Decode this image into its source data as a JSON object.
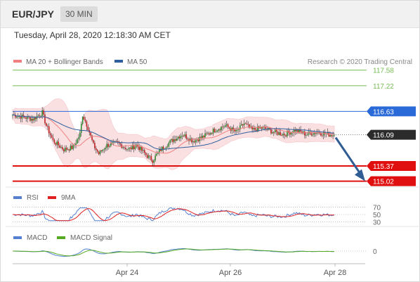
{
  "header": {
    "pair": "EUR/JPY",
    "timeframe": "30 MIN"
  },
  "date_line": "Tuesday, April 28, 2020 12:18:30 AM CET",
  "legend": {
    "bb": "MA 20 + Bollinger Bands",
    "ma50": "MA 50",
    "credit": "Research © 2020 Trading Central",
    "rsi": "RSI",
    "rsi9": "9MA",
    "macd": "MACD",
    "macd_signal": "MACD Signal"
  },
  "colors": {
    "bb": "#f08080",
    "ma50": "#2e5e9e",
    "up": "#2d8a2d",
    "down": "#c02020",
    "resistance": "#77bb55",
    "pivot": "#2a6ad8",
    "support": "#e01010",
    "arrow": "#2f5d94",
    "rsi": "#5580d0",
    "rsi9": "#e02020",
    "macd_signal": "#55aa22"
  },
  "chart_data": [
    {
      "type": "candlestick",
      "ylim": [
        114.9,
        117.9
      ],
      "xticks": [
        "Apr 24",
        "Apr 26",
        "Apr 28"
      ],
      "levels": [
        {
          "value": 117.58,
          "label": "117.58",
          "kind": "resistance"
        },
        {
          "value": 117.22,
          "label": "117.22",
          "kind": "resistance"
        },
        {
          "value": 116.63,
          "label": "116.63",
          "kind": "pivot"
        },
        {
          "value": 115.37,
          "label": "115.37",
          "kind": "support"
        },
        {
          "value": 115.02,
          "label": "115.02",
          "kind": "support"
        }
      ],
      "current_price": 116.09,
      "projection": {
        "from": 116.09,
        "to": 115.02
      },
      "series_path": [
        [
          0,
          116.55
        ],
        [
          8,
          116.5
        ],
        [
          15,
          116.45
        ],
        [
          22,
          116.6
        ],
        [
          25,
          116.3
        ],
        [
          30,
          115.95
        ],
        [
          38,
          115.75
        ],
        [
          45,
          115.8
        ],
        [
          50,
          116.1
        ],
        [
          52,
          116.55
        ],
        [
          56,
          116.25
        ],
        [
          60,
          115.85
        ],
        [
          64,
          115.65
        ],
        [
          70,
          115.85
        ],
        [
          78,
          115.9
        ],
        [
          86,
          115.75
        ],
        [
          92,
          115.85
        ],
        [
          100,
          115.6
        ],
        [
          104,
          115.5
        ],
        [
          110,
          115.75
        ],
        [
          118,
          115.95
        ],
        [
          126,
          116.1
        ],
        [
          134,
          115.95
        ],
        [
          142,
          116.05
        ],
        [
          150,
          116.2
        ],
        [
          158,
          116.3
        ],
        [
          166,
          116.15
        ],
        [
          172,
          116.35
        ],
        [
          178,
          116.2
        ],
        [
          186,
          116.25
        ],
        [
          194,
          116.15
        ],
        [
          202,
          116.1
        ],
        [
          210,
          116.2
        ],
        [
          218,
          116.1
        ],
        [
          226,
          116.15
        ],
        [
          234,
          116.1
        ],
        [
          240,
          116.08
        ]
      ],
      "candle_count": 240
    },
    {
      "type": "line",
      "name": "RSI",
      "ylim": [
        25,
        75
      ],
      "ref_levels": [
        {
          "value": 70,
          "label": "70"
        },
        {
          "value": 50,
          "label": "50"
        },
        {
          "value": 30,
          "label": "30"
        }
      ]
    },
    {
      "type": "line",
      "name": "MACD",
      "ref_levels": [
        {
          "value": 0,
          "label": "0"
        }
      ]
    }
  ]
}
